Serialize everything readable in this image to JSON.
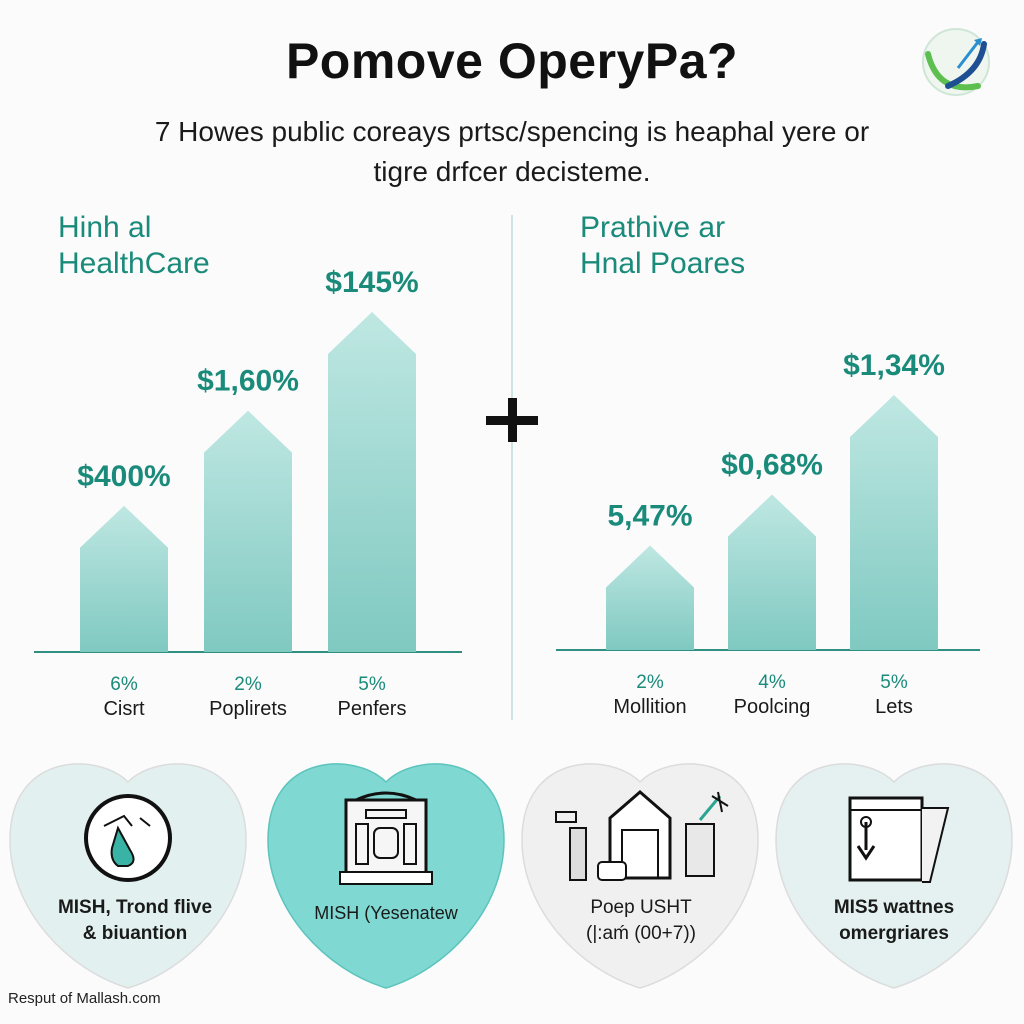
{
  "header": {
    "title": "Pomove OperyPa?",
    "subtitle_line1": "7 Howes public coreays prtsc/spencing is heaphal yere or",
    "subtitle_line2": "tigre drfcer decisteme."
  },
  "colors": {
    "bar": "#a6dbd6",
    "bar_dark": "#7fc9c1",
    "accent": "#1a8a7a",
    "highlight": "#6fd3cc"
  },
  "chart_data": [
    {
      "type": "bar",
      "title_line1": "Hinh al",
      "title_line2": "HealthCare",
      "categories": [
        "Cisrt",
        "Poplirets",
        "Penfers"
      ],
      "percent_labels": [
        "6%",
        "2%",
        "5%"
      ],
      "value_labels": [
        "$400%",
        "$1,60%",
        "$145%"
      ],
      "relative_heights": [
        0.43,
        0.71,
        1.0
      ]
    },
    {
      "type": "bar",
      "title_line1": "Prathive ar",
      "title_line2": "Hnal Poares",
      "categories": [
        "Mollition",
        "Poolcing",
        "Lets"
      ],
      "percent_labels": [
        "2%",
        "4%",
        "5%"
      ],
      "value_labels": [
        "5,47%",
        "$0,68%",
        "$1,34%"
      ],
      "relative_heights": [
        0.41,
        0.61,
        1.0
      ]
    }
  ],
  "cards": [
    {
      "icon": "hand-icon",
      "line1": "MISH, Trond flive",
      "line2": "& biuantion"
    },
    {
      "icon": "building-icon",
      "line1": "MISH (Yesenatew",
      "line2": ""
    },
    {
      "icon": "house-tools-icon",
      "line1": "Poep USHT",
      "line2": "(|:aḿ (00+7))"
    },
    {
      "icon": "document-icon",
      "line1": "MIS5 wattnes",
      "line2": "omergriares"
    }
  ],
  "footer": {
    "source": "Resput of Mallash.com"
  }
}
